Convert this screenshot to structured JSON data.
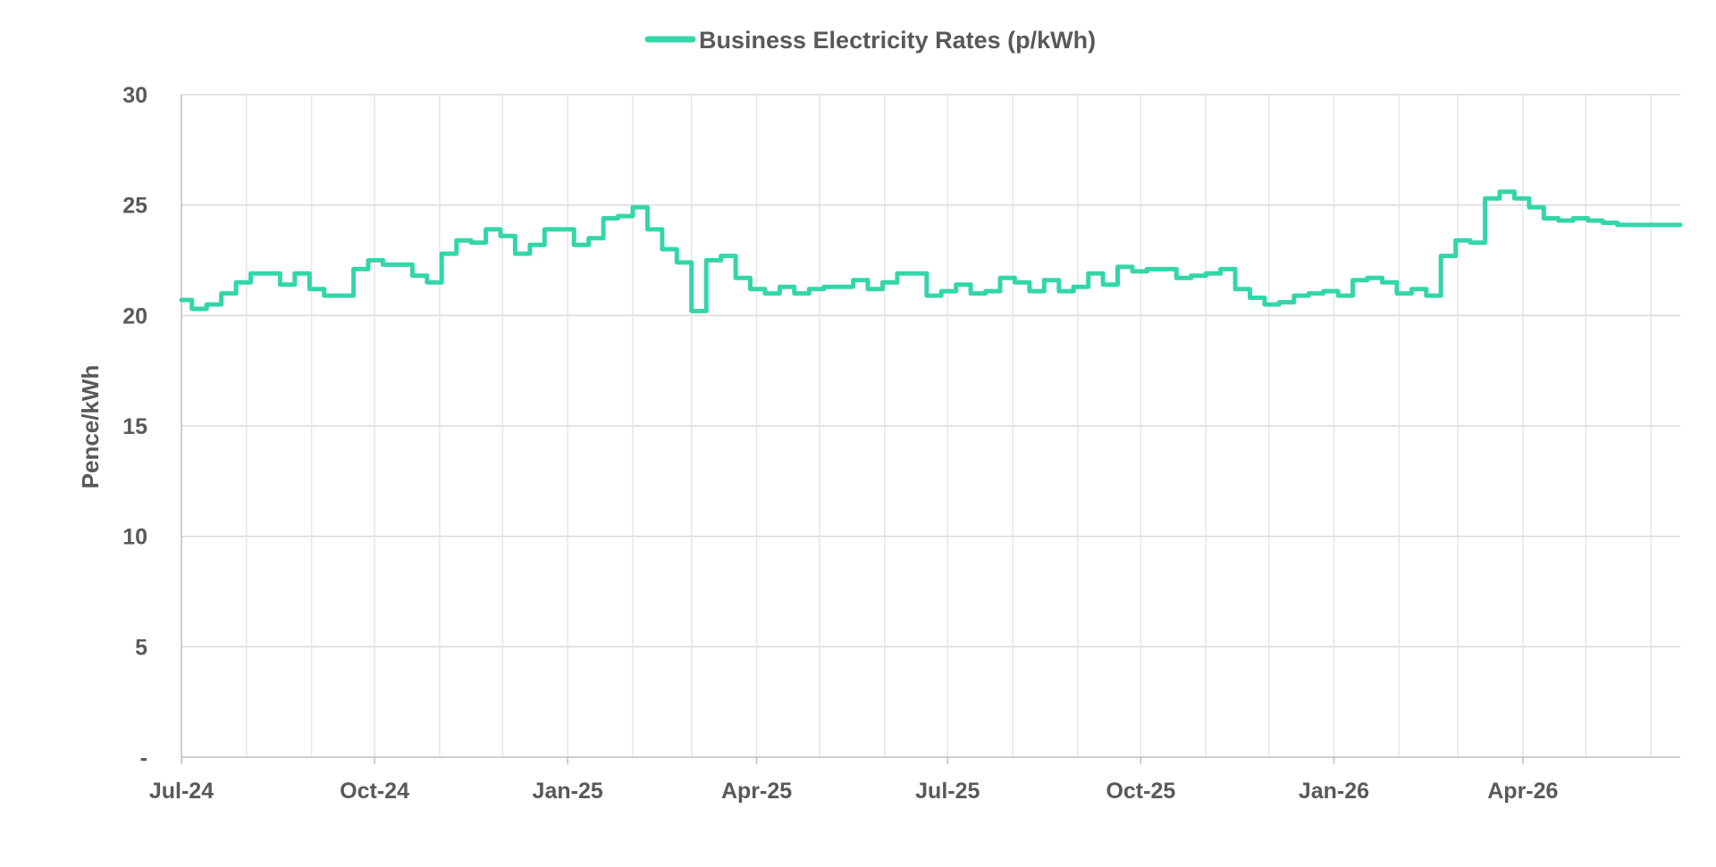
{
  "chart_data": {
    "type": "line",
    "title": "",
    "xlabel": "",
    "ylabel": "Pence/kWh",
    "ylim": [
      0,
      30
    ],
    "y_ticks": [
      {
        "value": 0,
        "label": "-"
      },
      {
        "value": 5,
        "label": "5"
      },
      {
        "value": 10,
        "label": "10"
      },
      {
        "value": 15,
        "label": "15"
      },
      {
        "value": 20,
        "label": "20"
      },
      {
        "value": 25,
        "label": "25"
      },
      {
        "value": 30,
        "label": "30"
      }
    ],
    "x_range": [
      "2024-07-01",
      "2026-06-15"
    ],
    "x_ticks": [
      {
        "date": "2024-07-01",
        "label": "Jul-24"
      },
      {
        "date": "2024-10-01",
        "label": "Oct-24"
      },
      {
        "date": "2025-01-01",
        "label": "Jan-25"
      },
      {
        "date": "2025-04-01",
        "label": "Apr-25"
      },
      {
        "date": "2025-07-01",
        "label": "Jul-25"
      },
      {
        "date": "2025-10-01",
        "label": "Oct-25"
      },
      {
        "date": "2026-01-01",
        "label": "Jan-26"
      },
      {
        "date": "2026-04-01",
        "label": "Apr-26"
      }
    ],
    "x_minor_grid": [
      "2024-08-01",
      "2024-09-01",
      "2024-11-01",
      "2024-12-01",
      "2025-02-01",
      "2025-03-01",
      "2025-05-01",
      "2025-06-01",
      "2025-08-01",
      "2025-09-01",
      "2025-11-01",
      "2025-12-01",
      "2026-02-01",
      "2026-03-01",
      "2026-05-01",
      "2026-06-01"
    ],
    "grid": true,
    "legend_position": "top-center",
    "series": [
      {
        "name": "Business Electricity Rates (p/kWh)",
        "color": "#33d6a8",
        "step": true,
        "points": [
          [
            "2024-07-01",
            20.7
          ],
          [
            "2024-07-06",
            20.3
          ],
          [
            "2024-07-13",
            20.5
          ],
          [
            "2024-07-20",
            21.0
          ],
          [
            "2024-07-27",
            21.5
          ],
          [
            "2024-08-03",
            21.9
          ],
          [
            "2024-08-17",
            21.4
          ],
          [
            "2024-08-24",
            21.9
          ],
          [
            "2024-08-31",
            21.2
          ],
          [
            "2024-09-07",
            20.9
          ],
          [
            "2024-09-21",
            22.1
          ],
          [
            "2024-09-28",
            22.5
          ],
          [
            "2024-10-05",
            22.3
          ],
          [
            "2024-10-19",
            21.8
          ],
          [
            "2024-10-26",
            21.5
          ],
          [
            "2024-11-02",
            22.8
          ],
          [
            "2024-11-09",
            23.4
          ],
          [
            "2024-11-16",
            23.3
          ],
          [
            "2024-11-23",
            23.9
          ],
          [
            "2024-11-30",
            23.6
          ],
          [
            "2024-12-07",
            22.8
          ],
          [
            "2024-12-14",
            23.2
          ],
          [
            "2024-12-21",
            23.9
          ],
          [
            "2025-01-04",
            23.2
          ],
          [
            "2025-01-11",
            23.5
          ],
          [
            "2025-01-18",
            24.4
          ],
          [
            "2025-01-25",
            24.5
          ],
          [
            "2025-02-01",
            24.9
          ],
          [
            "2025-02-08",
            23.9
          ],
          [
            "2025-02-15",
            23.0
          ],
          [
            "2025-02-22",
            22.4
          ],
          [
            "2025-03-01",
            20.2
          ],
          [
            "2025-03-08",
            22.5
          ],
          [
            "2025-03-15",
            22.7
          ],
          [
            "2025-03-22",
            21.7
          ],
          [
            "2025-03-29",
            21.2
          ],
          [
            "2025-04-05",
            21.0
          ],
          [
            "2025-04-12",
            21.3
          ],
          [
            "2025-04-19",
            21.0
          ],
          [
            "2025-04-26",
            21.2
          ],
          [
            "2025-05-03",
            21.3
          ],
          [
            "2025-05-17",
            21.6
          ],
          [
            "2025-05-24",
            21.2
          ],
          [
            "2025-05-31",
            21.5
          ],
          [
            "2025-06-07",
            21.9
          ],
          [
            "2025-06-21",
            20.9
          ],
          [
            "2025-06-28",
            21.1
          ],
          [
            "2025-07-05",
            21.4
          ],
          [
            "2025-07-12",
            21.0
          ],
          [
            "2025-07-19",
            21.1
          ],
          [
            "2025-07-26",
            21.7
          ],
          [
            "2025-08-02",
            21.5
          ],
          [
            "2025-08-09",
            21.1
          ],
          [
            "2025-08-16",
            21.6
          ],
          [
            "2025-08-23",
            21.1
          ],
          [
            "2025-08-30",
            21.3
          ],
          [
            "2025-09-06",
            21.9
          ],
          [
            "2025-09-13",
            21.4
          ],
          [
            "2025-09-20",
            22.2
          ],
          [
            "2025-09-27",
            22.0
          ],
          [
            "2025-10-04",
            22.1
          ],
          [
            "2025-10-18",
            21.7
          ],
          [
            "2025-10-25",
            21.8
          ],
          [
            "2025-11-01",
            21.9
          ],
          [
            "2025-11-08",
            22.1
          ],
          [
            "2025-11-15",
            21.2
          ],
          [
            "2025-11-22",
            20.8
          ],
          [
            "2025-11-29",
            20.5
          ],
          [
            "2025-12-06",
            20.6
          ],
          [
            "2025-12-13",
            20.9
          ],
          [
            "2025-12-20",
            21.0
          ],
          [
            "2025-12-27",
            21.1
          ],
          [
            "2026-01-03",
            20.9
          ],
          [
            "2026-01-10",
            21.6
          ],
          [
            "2026-01-17",
            21.7
          ],
          [
            "2026-01-24",
            21.5
          ],
          [
            "2026-01-31",
            21.0
          ],
          [
            "2026-02-07",
            21.2
          ],
          [
            "2026-02-14",
            20.9
          ],
          [
            "2026-02-21",
            22.7
          ],
          [
            "2026-02-28",
            23.4
          ],
          [
            "2026-03-07",
            23.3
          ],
          [
            "2026-03-14",
            25.3
          ],
          [
            "2026-03-21",
            25.6
          ],
          [
            "2026-03-28",
            25.3
          ],
          [
            "2026-04-04",
            24.9
          ],
          [
            "2026-04-11",
            24.4
          ],
          [
            "2026-04-18",
            24.3
          ],
          [
            "2026-04-25",
            24.4
          ],
          [
            "2026-05-02",
            24.3
          ],
          [
            "2026-05-09",
            24.2
          ],
          [
            "2026-05-16",
            24.1
          ],
          [
            "2026-06-15",
            24.1
          ]
        ]
      }
    ]
  }
}
